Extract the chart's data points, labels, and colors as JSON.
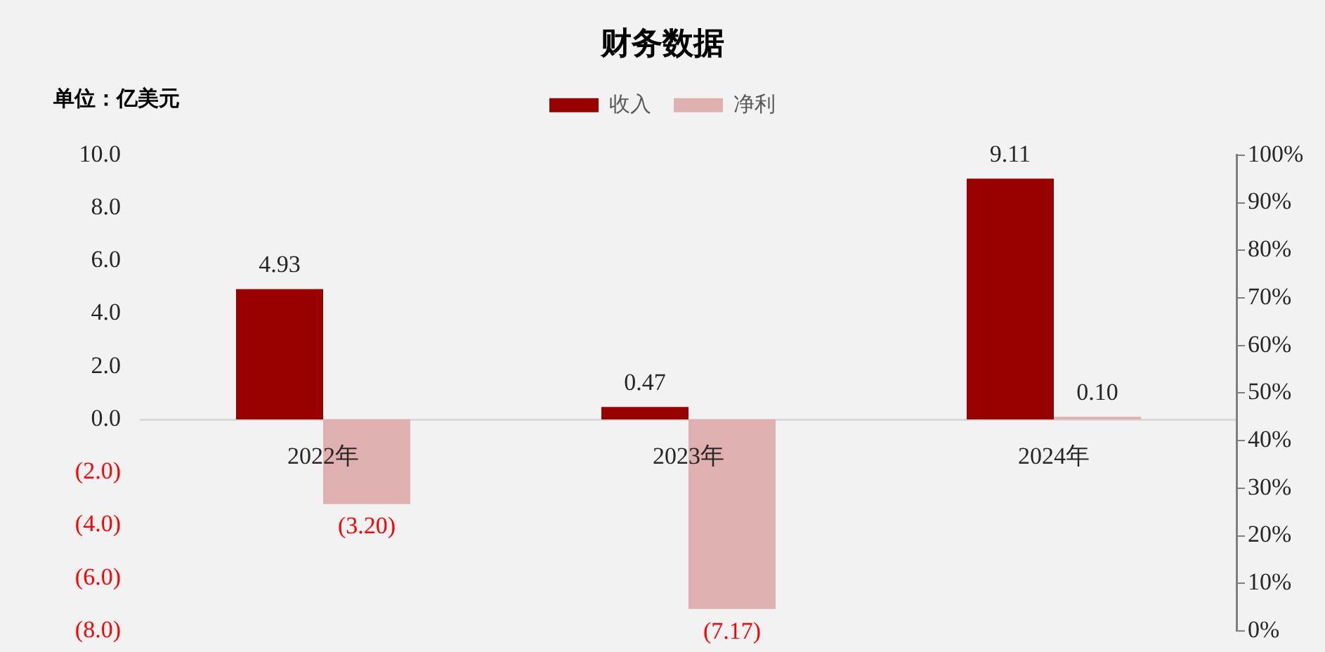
{
  "chart_data": {
    "type": "bar",
    "title": "财务数据",
    "ylabel": "单位：亿美元",
    "categories": [
      "2022年",
      "2023年",
      "2024年"
    ],
    "series": [
      {
        "name": "收入",
        "color": "#990000",
        "values": [
          4.93,
          0.47,
          9.11
        ],
        "value_labels": [
          "4.93",
          "0.47",
          "9.11"
        ]
      },
      {
        "name": "净利",
        "color": "#e0b0b0",
        "values": [
          -3.2,
          -7.17,
          0.1
        ],
        "value_labels": [
          "(3.20)",
          "(7.17)",
          "0.10"
        ]
      }
    ],
    "ylim": [
      -8,
      10
    ],
    "yticks": [
      {
        "value": 10,
        "label": "10.0"
      },
      {
        "value": 8,
        "label": "8.0"
      },
      {
        "value": 6,
        "label": "6.0"
      },
      {
        "value": 4,
        "label": "4.0"
      },
      {
        "value": 2,
        "label": "2.0"
      },
      {
        "value": 0,
        "label": "0.0"
      },
      {
        "value": -2,
        "label": "(2.0)"
      },
      {
        "value": -4,
        "label": "(4.0)"
      },
      {
        "value": -6,
        "label": "(6.0)"
      },
      {
        "value": -8,
        "label": "(8.0)"
      }
    ],
    "y2lim": [
      0,
      100
    ],
    "y2ticks": [
      {
        "value": 0,
        "label": "0%"
      },
      {
        "value": 10,
        "label": "10%"
      },
      {
        "value": 20,
        "label": "20%"
      },
      {
        "value": 30,
        "label": "30%"
      },
      {
        "value": 40,
        "label": "40%"
      },
      {
        "value": 50,
        "label": "50%"
      },
      {
        "value": 60,
        "label": "60%"
      },
      {
        "value": 70,
        "label": "70%"
      },
      {
        "value": 80,
        "label": "80%"
      },
      {
        "value": 90,
        "label": "90%"
      },
      {
        "value": 100,
        "label": "100%"
      }
    ],
    "legend": "top"
  }
}
